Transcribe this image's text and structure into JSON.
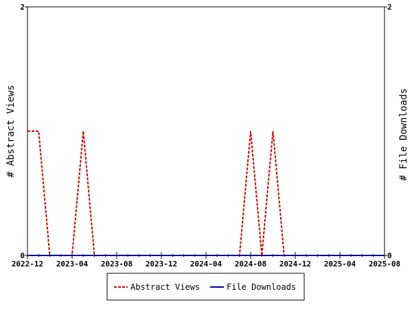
{
  "chart_data": {
    "type": "line",
    "ylabel_left": "# Abstract Views",
    "ylabel_right": "# File Downloads",
    "ylim_left": [
      0,
      2
    ],
    "ylim_right": [
      0,
      2
    ],
    "y_ticks_left": [
      "0",
      "2"
    ],
    "y_ticks_right": [
      "0",
      "2"
    ],
    "x_range": [
      "2022-12",
      "2025-08"
    ],
    "x_tick_labels": [
      "2022-12",
      "2023-04",
      "2023-08",
      "2023-12",
      "2024-04",
      "2024-08",
      "2024-12",
      "2025-04",
      "2025-08"
    ],
    "grid": false,
    "legend_position": "bottom-center",
    "x": [
      "2022-12",
      "2023-01",
      "2023-02",
      "2023-03",
      "2023-04",
      "2023-05",
      "2023-06",
      "2023-07",
      "2023-08",
      "2023-09",
      "2023-10",
      "2023-11",
      "2023-12",
      "2024-01",
      "2024-02",
      "2024-03",
      "2024-04",
      "2024-05",
      "2024-06",
      "2024-07",
      "2024-08",
      "2024-09",
      "2024-10",
      "2024-11",
      "2024-12",
      "2025-01",
      "2025-02",
      "2025-03",
      "2025-04",
      "2025-05",
      "2025-06",
      "2025-07",
      "2025-08"
    ],
    "series": [
      {
        "name": "Abstract Views",
        "color": "#cc0000",
        "dash": "dashed",
        "values": [
          1,
          1,
          0,
          0,
          0,
          1,
          0,
          0,
          0,
          0,
          0,
          0,
          0,
          0,
          0,
          0,
          0,
          0,
          0,
          0,
          1,
          0,
          1,
          0,
          0,
          0,
          0,
          0,
          0,
          0,
          0,
          0,
          0
        ]
      },
      {
        "name": "File Downloads",
        "color": "#000099",
        "dash": "solid",
        "values": [
          0,
          0,
          0,
          0,
          0,
          0,
          0,
          0,
          0,
          0,
          0,
          0,
          0,
          0,
          0,
          0,
          0,
          0,
          0,
          0,
          0,
          0,
          0,
          0,
          0,
          0,
          0,
          0,
          0,
          0,
          0,
          0,
          0
        ]
      }
    ]
  }
}
